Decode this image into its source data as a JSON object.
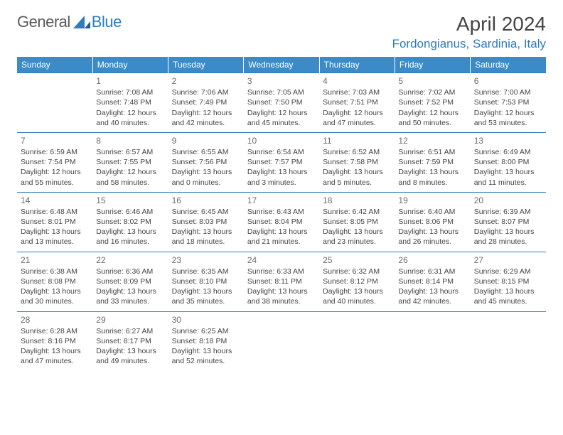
{
  "logo": {
    "text1": "General",
    "text2": "Blue"
  },
  "title": "April 2024",
  "location": "Fordongianus, Sardinia, Italy",
  "colors": {
    "header_bg": "#3b8bc9",
    "header_text": "#ffffff",
    "border": "#2f7bbf",
    "accent": "#2f7bbf",
    "body_text": "#444444"
  },
  "day_names": [
    "Sunday",
    "Monday",
    "Tuesday",
    "Wednesday",
    "Thursday",
    "Friday",
    "Saturday"
  ],
  "weeks": [
    [
      null,
      {
        "n": "1",
        "sr": "7:08 AM",
        "ss": "7:48 PM",
        "d1": "12 hours",
        "d2": "and 40 minutes."
      },
      {
        "n": "2",
        "sr": "7:06 AM",
        "ss": "7:49 PM",
        "d1": "12 hours",
        "d2": "and 42 minutes."
      },
      {
        "n": "3",
        "sr": "7:05 AM",
        "ss": "7:50 PM",
        "d1": "12 hours",
        "d2": "and 45 minutes."
      },
      {
        "n": "4",
        "sr": "7:03 AM",
        "ss": "7:51 PM",
        "d1": "12 hours",
        "d2": "and 47 minutes."
      },
      {
        "n": "5",
        "sr": "7:02 AM",
        "ss": "7:52 PM",
        "d1": "12 hours",
        "d2": "and 50 minutes."
      },
      {
        "n": "6",
        "sr": "7:00 AM",
        "ss": "7:53 PM",
        "d1": "12 hours",
        "d2": "and 53 minutes."
      }
    ],
    [
      {
        "n": "7",
        "sr": "6:59 AM",
        "ss": "7:54 PM",
        "d1": "12 hours",
        "d2": "and 55 minutes."
      },
      {
        "n": "8",
        "sr": "6:57 AM",
        "ss": "7:55 PM",
        "d1": "12 hours",
        "d2": "and 58 minutes."
      },
      {
        "n": "9",
        "sr": "6:55 AM",
        "ss": "7:56 PM",
        "d1": "13 hours",
        "d2": "and 0 minutes."
      },
      {
        "n": "10",
        "sr": "6:54 AM",
        "ss": "7:57 PM",
        "d1": "13 hours",
        "d2": "and 3 minutes."
      },
      {
        "n": "11",
        "sr": "6:52 AM",
        "ss": "7:58 PM",
        "d1": "13 hours",
        "d2": "and 5 minutes."
      },
      {
        "n": "12",
        "sr": "6:51 AM",
        "ss": "7:59 PM",
        "d1": "13 hours",
        "d2": "and 8 minutes."
      },
      {
        "n": "13",
        "sr": "6:49 AM",
        "ss": "8:00 PM",
        "d1": "13 hours",
        "d2": "and 11 minutes."
      }
    ],
    [
      {
        "n": "14",
        "sr": "6:48 AM",
        "ss": "8:01 PM",
        "d1": "13 hours",
        "d2": "and 13 minutes."
      },
      {
        "n": "15",
        "sr": "6:46 AM",
        "ss": "8:02 PM",
        "d1": "13 hours",
        "d2": "and 16 minutes."
      },
      {
        "n": "16",
        "sr": "6:45 AM",
        "ss": "8:03 PM",
        "d1": "13 hours",
        "d2": "and 18 minutes."
      },
      {
        "n": "17",
        "sr": "6:43 AM",
        "ss": "8:04 PM",
        "d1": "13 hours",
        "d2": "and 21 minutes."
      },
      {
        "n": "18",
        "sr": "6:42 AM",
        "ss": "8:05 PM",
        "d1": "13 hours",
        "d2": "and 23 minutes."
      },
      {
        "n": "19",
        "sr": "6:40 AM",
        "ss": "8:06 PM",
        "d1": "13 hours",
        "d2": "and 26 minutes."
      },
      {
        "n": "20",
        "sr": "6:39 AM",
        "ss": "8:07 PM",
        "d1": "13 hours",
        "d2": "and 28 minutes."
      }
    ],
    [
      {
        "n": "21",
        "sr": "6:38 AM",
        "ss": "8:08 PM",
        "d1": "13 hours",
        "d2": "and 30 minutes."
      },
      {
        "n": "22",
        "sr": "6:36 AM",
        "ss": "8:09 PM",
        "d1": "13 hours",
        "d2": "and 33 minutes."
      },
      {
        "n": "23",
        "sr": "6:35 AM",
        "ss": "8:10 PM",
        "d1": "13 hours",
        "d2": "and 35 minutes."
      },
      {
        "n": "24",
        "sr": "6:33 AM",
        "ss": "8:11 PM",
        "d1": "13 hours",
        "d2": "and 38 minutes."
      },
      {
        "n": "25",
        "sr": "6:32 AM",
        "ss": "8:12 PM",
        "d1": "13 hours",
        "d2": "and 40 minutes."
      },
      {
        "n": "26",
        "sr": "6:31 AM",
        "ss": "8:14 PM",
        "d1": "13 hours",
        "d2": "and 42 minutes."
      },
      {
        "n": "27",
        "sr": "6:29 AM",
        "ss": "8:15 PM",
        "d1": "13 hours",
        "d2": "and 45 minutes."
      }
    ],
    [
      {
        "n": "28",
        "sr": "6:28 AM",
        "ss": "8:16 PM",
        "d1": "13 hours",
        "d2": "and 47 minutes."
      },
      {
        "n": "29",
        "sr": "6:27 AM",
        "ss": "8:17 PM",
        "d1": "13 hours",
        "d2": "and 49 minutes."
      },
      {
        "n": "30",
        "sr": "6:25 AM",
        "ss": "8:18 PM",
        "d1": "13 hours",
        "d2": "and 52 minutes."
      },
      null,
      null,
      null,
      null
    ]
  ],
  "labels": {
    "sunrise": "Sunrise:",
    "sunset": "Sunset:",
    "daylight": "Daylight:"
  }
}
